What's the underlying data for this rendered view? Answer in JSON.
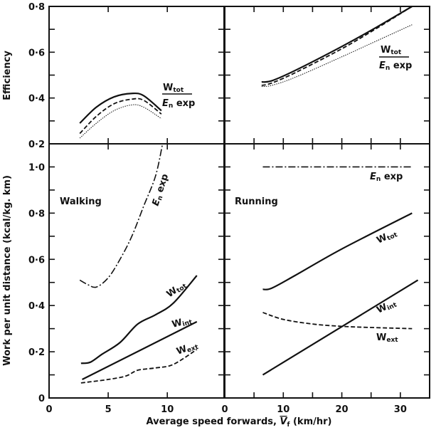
{
  "chart_data": [
    {
      "type": "line",
      "panel": "top-left",
      "ylabel": "Efficiency",
      "xlim": [
        0,
        14.8
      ],
      "ylim": [
        0.2,
        0.8
      ],
      "yticks": [
        0.2,
        0.4,
        0.6,
        0.8
      ],
      "ytick_labels": [
        "0·2",
        "0·4",
        "0·6",
        "0·8"
      ],
      "annotation": {
        "num": "W",
        "num_sub": "tot",
        "den": "E",
        "den_sub": "n",
        "den_rest": " exp"
      },
      "series": [
        {
          "style": "solid",
          "points": [
            [
              2.6,
              0.29
            ],
            [
              4,
              0.36
            ],
            [
              5.5,
              0.405
            ],
            [
              7,
              0.42
            ],
            [
              8,
              0.41
            ],
            [
              9.5,
              0.345
            ]
          ]
        },
        {
          "style": "dashed",
          "points": [
            [
              2.6,
              0.245
            ],
            [
              4,
              0.32
            ],
            [
              5.5,
              0.375
            ],
            [
              7,
              0.395
            ],
            [
              8,
              0.39
            ],
            [
              9.5,
              0.33
            ]
          ]
        },
        {
          "style": "dotted",
          "points": [
            [
              2.6,
              0.225
            ],
            [
              4,
              0.29
            ],
            [
              5.5,
              0.345
            ],
            [
              7,
              0.37
            ],
            [
              8,
              0.36
            ],
            [
              9.5,
              0.31
            ]
          ]
        }
      ]
    },
    {
      "type": "line",
      "panel": "top-right",
      "xlim": [
        0,
        35
      ],
      "ylim": [
        0.2,
        0.8
      ],
      "annotation": {
        "num": "W",
        "num_sub": "tot",
        "den": "E",
        "den_sub": "n",
        "den_rest": " exp"
      },
      "series": [
        {
          "style": "solid",
          "points": [
            [
              6.3,
              0.47
            ],
            [
              8,
              0.475
            ],
            [
              12,
              0.52
            ],
            [
              20,
              0.625
            ],
            [
              26,
              0.71
            ],
            [
              32,
              0.8
            ]
          ]
        },
        {
          "style": "dashed",
          "points": [
            [
              6.3,
              0.455
            ],
            [
              8,
              0.465
            ],
            [
              12,
              0.51
            ],
            [
              20,
              0.615
            ],
            [
              26,
              0.705
            ],
            [
              32,
              0.8
            ]
          ]
        },
        {
          "style": "dotted",
          "points": [
            [
              6.3,
              0.45
            ],
            [
              8,
              0.455
            ],
            [
              12,
              0.49
            ],
            [
              20,
              0.58
            ],
            [
              26,
              0.65
            ],
            [
              32,
              0.72
            ]
          ]
        }
      ]
    },
    {
      "type": "line",
      "panel": "bottom-left",
      "title": "Walking",
      "ylabel": "Work per unit distance (kcal/kg. km)",
      "xlim": [
        0,
        14.8
      ],
      "ylim": [
        0,
        1.1
      ],
      "xticks": [
        0,
        5,
        10
      ],
      "xtick_labels": [
        "0",
        "5",
        "10"
      ],
      "yticks": [
        0,
        0.2,
        0.4,
        0.6,
        0.8,
        1.0
      ],
      "ytick_labels": [
        "0",
        "0·2",
        "0·4",
        "0·6",
        "0·8",
        "1·0"
      ],
      "series": [
        {
          "name": "E_n exp",
          "label": {
            "main": "E",
            "sub": "n",
            "rest": " exp"
          },
          "style": "dashdot",
          "points": [
            [
              2.6,
              0.51
            ],
            [
              3.3,
              0.49
            ],
            [
              4,
              0.48
            ],
            [
              5,
              0.52
            ],
            [
              6,
              0.6
            ],
            [
              7,
              0.7
            ],
            [
              8,
              0.83
            ],
            [
              9,
              0.96
            ],
            [
              9.6,
              1.1
            ]
          ]
        },
        {
          "name": "W_tot",
          "label": {
            "main": "W",
            "sub": "tot"
          },
          "style": "solid",
          "points": [
            [
              2.7,
              0.15
            ],
            [
              3.5,
              0.155
            ],
            [
              4.5,
              0.19
            ],
            [
              6,
              0.24
            ],
            [
              7.5,
              0.32
            ],
            [
              9,
              0.36
            ],
            [
              10.5,
              0.41
            ],
            [
              12.5,
              0.53
            ]
          ]
        },
        {
          "name": "W_int",
          "label": {
            "main": "W",
            "sub": "int"
          },
          "style": "solid",
          "points": [
            [
              2.8,
              0.08
            ],
            [
              12.5,
              0.33
            ]
          ]
        },
        {
          "name": "W_ext",
          "label": {
            "main": "W",
            "sub": "ext"
          },
          "style": "dashed",
          "points": [
            [
              2.7,
              0.065
            ],
            [
              3.5,
              0.07
            ],
            [
              5,
              0.08
            ],
            [
              6.5,
              0.095
            ],
            [
              7.5,
              0.12
            ],
            [
              9,
              0.13
            ],
            [
              10.5,
              0.145
            ],
            [
              12.5,
              0.21
            ]
          ]
        }
      ]
    },
    {
      "type": "line",
      "panel": "bottom-right",
      "title": "Running",
      "xlim": [
        0,
        35
      ],
      "ylim": [
        0,
        1.1
      ],
      "xticks": [
        0,
        10,
        20,
        30
      ],
      "xtick_labels": [
        "0",
        "10",
        "20",
        "30"
      ],
      "series": [
        {
          "name": "E_n exp",
          "label": {
            "main": "E",
            "sub": "n",
            "rest": " exp"
          },
          "style": "dashdot",
          "points": [
            [
              6.5,
              1.0
            ],
            [
              32,
              1.0
            ]
          ]
        },
        {
          "name": "W_tot",
          "label": {
            "main": "W",
            "sub": "tot"
          },
          "style": "solid",
          "points": [
            [
              6.5,
              0.47
            ],
            [
              8,
              0.475
            ],
            [
              12,
              0.53
            ],
            [
              20,
              0.645
            ],
            [
              32,
              0.8
            ]
          ]
        },
        {
          "name": "W_int",
          "label": {
            "main": "W",
            "sub": "int"
          },
          "style": "solid",
          "points": [
            [
              6.5,
              0.1
            ],
            [
              33,
              0.51
            ]
          ]
        },
        {
          "name": "W_ext",
          "label": {
            "main": "W",
            "sub": "ext"
          },
          "style": "dashed",
          "points": [
            [
              6.5,
              0.37
            ],
            [
              10,
              0.34
            ],
            [
              15,
              0.32
            ],
            [
              20,
              0.31
            ],
            [
              25,
              0.305
            ],
            [
              32,
              0.3
            ]
          ]
        }
      ]
    }
  ],
  "xlabel": {
    "pre": "Average speed forwards, ",
    "var": "V",
    "sub": "f",
    "post": " (km/hr)"
  }
}
